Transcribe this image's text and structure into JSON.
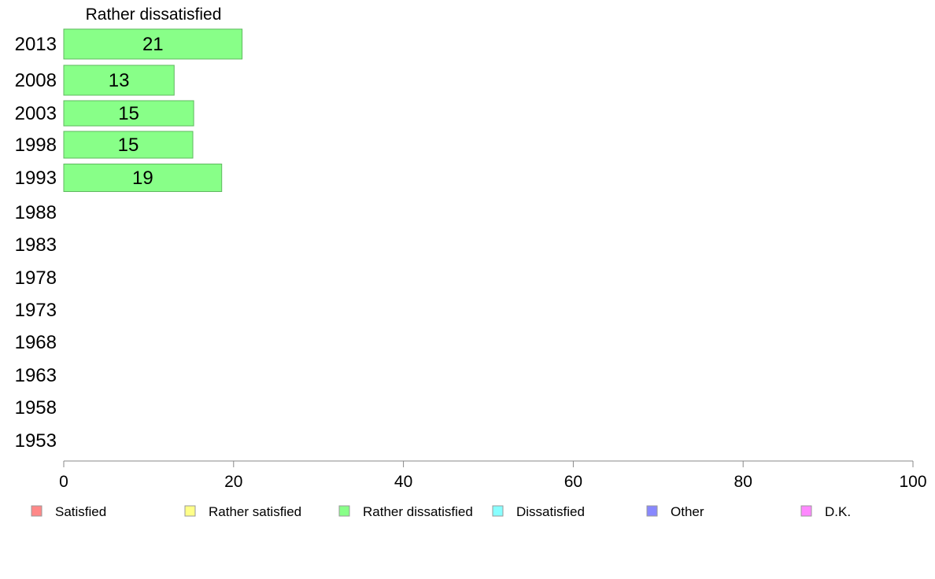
{
  "chart_data": {
    "type": "bar",
    "orientation": "horizontal",
    "title": "Rather dissatisfied",
    "categories": [
      "2013",
      "2008",
      "2003",
      "1998",
      "1993",
      "1988",
      "1983",
      "1978",
      "1973",
      "1968",
      "1963",
      "1958",
      "1953"
    ],
    "series": [
      {
        "name": "Rather dissatisfied",
        "color": "#88ff88",
        "values": [
          21,
          13,
          15.3,
          15.2,
          18.6,
          null,
          null,
          null,
          null,
          null,
          null,
          null,
          null
        ]
      }
    ],
    "value_labels": [
      "21",
      "13",
      "15",
      "15",
      "19",
      "",
      "",
      "",
      "",
      "",
      "",
      "",
      ""
    ],
    "xlim": [
      0,
      100
    ],
    "xticks": [
      "0",
      "20",
      "40",
      "60",
      "80",
      "100"
    ],
    "grid": false,
    "legend": {
      "placement": "bottom",
      "items": [
        {
          "label": "Satisfied",
          "color": "#ff8888"
        },
        {
          "label": "Rather satisfied",
          "color": "#ffff88"
        },
        {
          "label": "Rather dissatisfied",
          "color": "#88ff88"
        },
        {
          "label": "Dissatisfied",
          "color": "#88ffff"
        },
        {
          "label": "Other",
          "color": "#8888ff"
        },
        {
          "label": "D.K.",
          "color": "#ff88ff"
        }
      ]
    }
  }
}
